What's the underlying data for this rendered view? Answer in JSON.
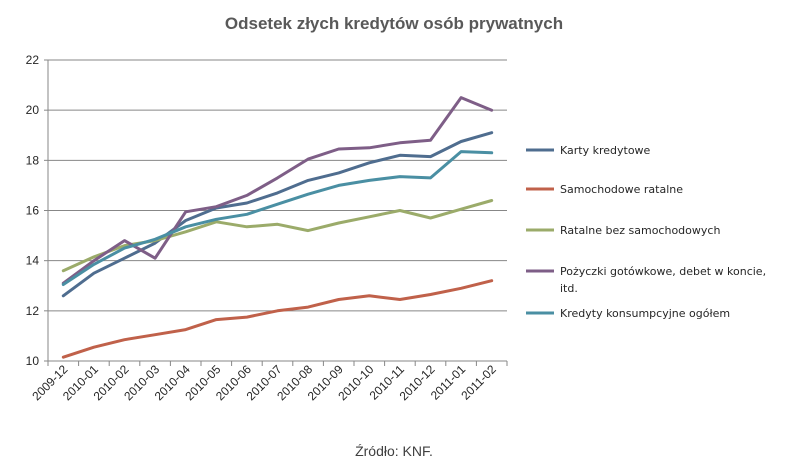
{
  "chart_data": {
    "type": "line",
    "title": "Odsetek złych kredytów osób prywatnych",
    "source": "Źródło: KNF.",
    "xlabel": "",
    "ylabel": "",
    "ylim": [
      10,
      22
    ],
    "yticks": [
      "10",
      "12",
      "14",
      "16",
      "18",
      "20",
      "22"
    ],
    "grid": "horizontal",
    "legend_position": "right",
    "categories": [
      "2009-12",
      "2010-01",
      "2010-02",
      "2010-03",
      "2010-04",
      "2010-05",
      "2010-06",
      "2010-07",
      "2010-08",
      "2010-09",
      "2010-10",
      "2010-11",
      "2010-12",
      "2011-01",
      "2011-02"
    ],
    "series": [
      {
        "name": "Karty kredytowe",
        "color": "#4f6d8f",
        "values": [
          12.6,
          13.5,
          14.1,
          14.7,
          15.6,
          16.1,
          16.3,
          16.7,
          17.2,
          17.5,
          17.9,
          18.2,
          18.15,
          18.75,
          19.1
        ]
      },
      {
        "name": "Samochodowe ratalne",
        "color": "#c0614a",
        "values": [
          10.15,
          10.55,
          10.85,
          11.05,
          11.25,
          11.65,
          11.75,
          12.0,
          12.15,
          12.45,
          12.6,
          12.45,
          12.65,
          12.9,
          13.2
        ]
      },
      {
        "name": "Ratalne bez samochodowych",
        "color": "#9bab6a",
        "values": [
          13.6,
          14.15,
          14.6,
          14.8,
          15.15,
          15.55,
          15.35,
          15.45,
          15.2,
          15.5,
          15.75,
          16.0,
          15.7,
          16.05,
          16.4
        ]
      },
      {
        "name": "Pożyczki gotówkowe, debet w koncie, itd.",
        "name_lines": [
          "Pożyczki gotówkowe, debet w koncie,",
          "itd."
        ],
        "color": "#7e5e87",
        "values": [
          13.1,
          14.0,
          14.8,
          14.1,
          15.95,
          16.15,
          16.6,
          17.3,
          18.05,
          18.45,
          18.5,
          18.7,
          18.8,
          20.5,
          20.0
        ]
      },
      {
        "name": "Kredyty konsumpcyjne ogółem",
        "color": "#4a8fa3",
        "values": [
          13.05,
          13.85,
          14.5,
          14.85,
          15.35,
          15.65,
          15.85,
          16.25,
          16.65,
          17.0,
          17.2,
          17.35,
          17.3,
          18.35,
          18.3
        ]
      }
    ]
  }
}
